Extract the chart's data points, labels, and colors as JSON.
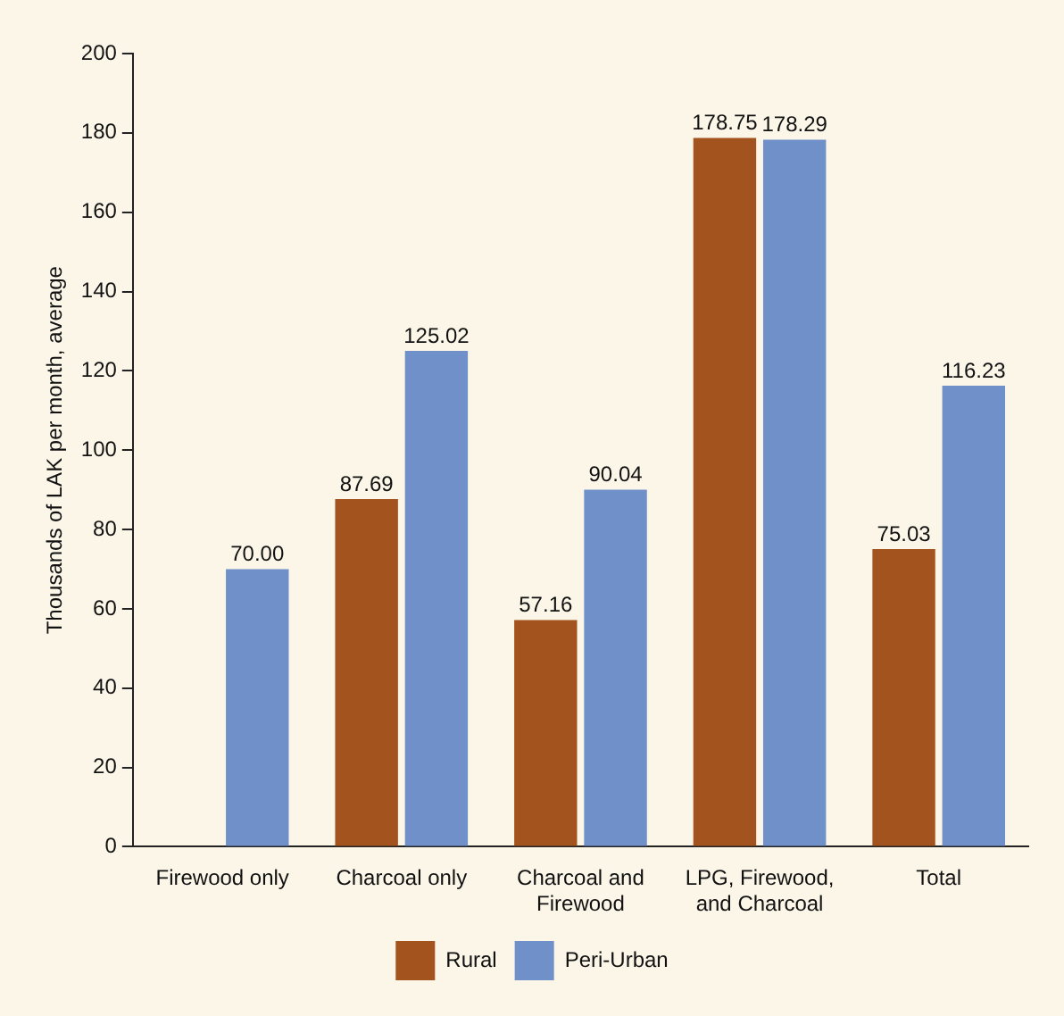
{
  "chart_data": {
    "type": "bar",
    "ylabel": "Thousands of LAK per month, average",
    "categories": [
      "Firewood only",
      "Charcoal only",
      "Charcoal and Firewood",
      "LPG, Firewood, and Charcoal",
      "Total"
    ],
    "series": [
      {
        "name": "Rural",
        "color": "#a3541e",
        "values": [
          null,
          87.69,
          57.16,
          178.75,
          75.03
        ],
        "value_labels": [
          null,
          "87.69",
          "57.16",
          "178.75",
          "75.03"
        ]
      },
      {
        "name": "Peri-Urban",
        "color": "#6f90c8",
        "values": [
          70.0,
          125.02,
          90.04,
          178.29,
          116.23
        ],
        "value_labels": [
          "70.00",
          "125.02",
          "90.04",
          "178.29",
          "116.23"
        ]
      }
    ],
    "ylim": [
      0,
      200
    ],
    "yticks": [
      0,
      20,
      40,
      60,
      80,
      100,
      120,
      140,
      160,
      180,
      200
    ],
    "grid": false,
    "legend": "bottom"
  }
}
